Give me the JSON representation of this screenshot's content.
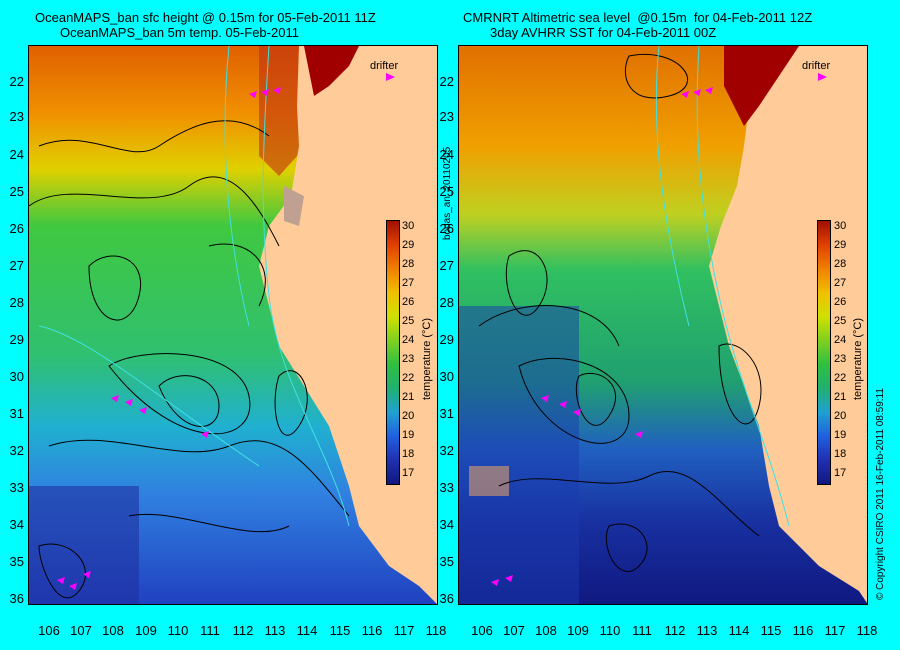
{
  "titles": {
    "left_line1": "OceanMAPS_ban sfc height @ 0.15m for 05-Feb-2011 11Z",
    "left_line2": "OceanMAPS_ban 5m temp. 05-Feb-2011",
    "right_line1": "CMRNRT Altimetric sea level  @0.15m  for 04-Feb-2011 12Z",
    "right_line2": "3day AVHRR SST for 04-Feb-2011 00Z"
  },
  "x_ticks": [
    "106",
    "107",
    "108",
    "109",
    "110",
    "111",
    "112",
    "113",
    "114",
    "115",
    "116",
    "117",
    "118"
  ],
  "y_ticks": [
    "22",
    "23",
    "24",
    "25",
    "26",
    "27",
    "28",
    "29",
    "30",
    "31",
    "32",
    "33",
    "34",
    "35",
    "36"
  ],
  "colorbar": {
    "ticks": [
      "30",
      "29",
      "28",
      "27",
      "26",
      "25",
      "24",
      "23",
      "22",
      "21",
      "20",
      "19",
      "18",
      "17"
    ],
    "title": "temperature (°C)"
  },
  "legend": {
    "drifter_label": "drifter"
  },
  "side_text": {
    "middle": "bodas_an_20110205",
    "right": "© Copyright CSIRO 2011   16-Feb-2011 08:59:11"
  },
  "colors": {
    "land": "#ffcc99",
    "drifter": "#ff00ff",
    "background": "#00ffff"
  }
}
